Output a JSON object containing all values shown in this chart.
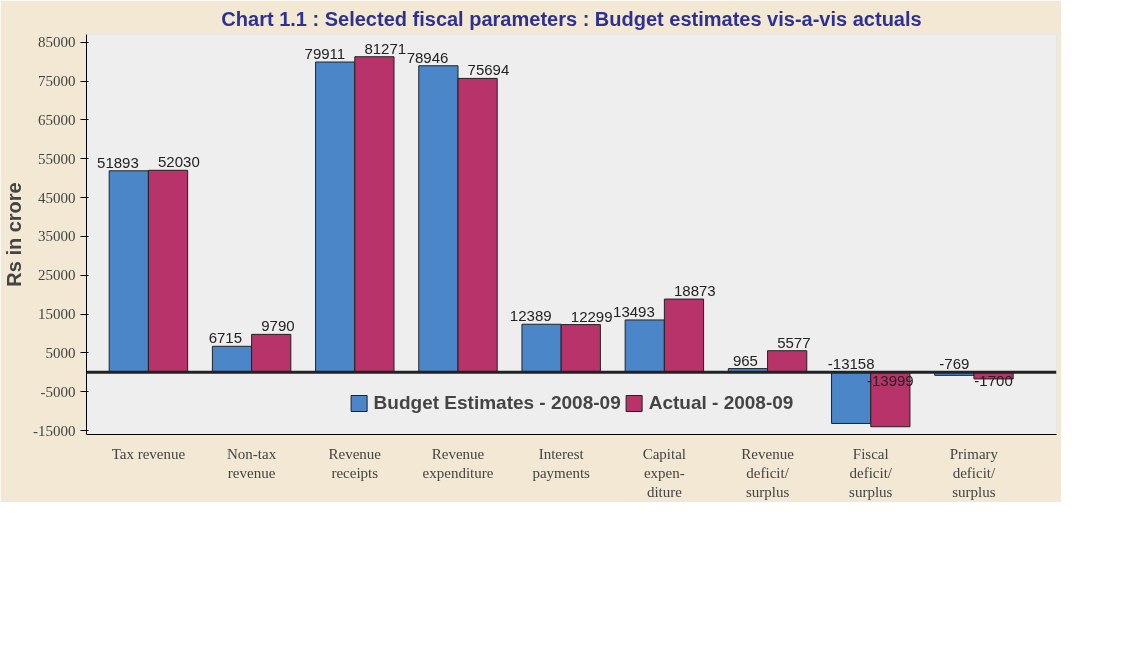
{
  "chart_data": {
    "type": "bar",
    "title": "Chart 1.1 : Selected fiscal parameters : Budget estimates vis-a-vis actuals",
    "ylabel": "Rs in crore",
    "categories": [
      "Tax revenue",
      "Non-tax\nrevenue",
      "Revenue\nreceipts",
      "Revenue\nexpenditure",
      "Interest\npayments",
      "Capital\nexpen-\nditure",
      "Revenue\ndeficit/\nsurplus",
      "Fiscal\ndeficit/\nsurplus",
      "Primary\ndeficit/\nsurplus"
    ],
    "series": [
      {
        "name": "Budget Estimates - 2008-09",
        "color": "#4a86c8",
        "values": [
          51893,
          6715,
          79911,
          78946,
          12389,
          13493,
          965,
          -13158,
          -769
        ]
      },
      {
        "name": "Actual - 2008-09",
        "color": "#b8336a",
        "values": [
          52030,
          9790,
          81271,
          75694,
          12299,
          18873,
          5577,
          -13999,
          -1700
        ]
      }
    ],
    "ylim": [
      -16000,
      87000
    ],
    "yticks": [
      -15000,
      -5000,
      5000,
      15000,
      25000,
      35000,
      45000,
      55000,
      65000,
      75000,
      85000
    ],
    "data_labels": true,
    "grid": false,
    "legend": "bottom"
  }
}
